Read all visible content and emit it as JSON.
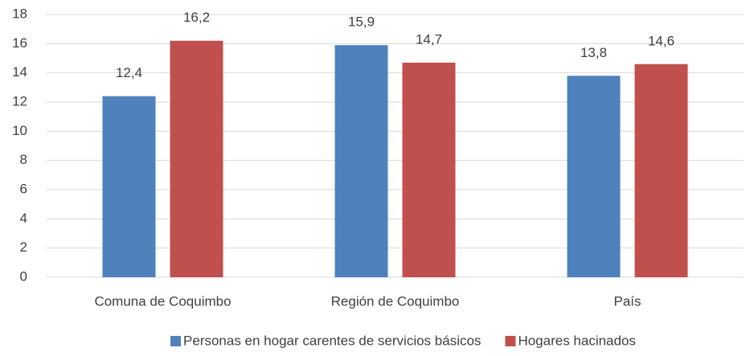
{
  "chart_data": {
    "type": "bar",
    "categories": [
      "Comuna de Coquimbo",
      "Región de Coquimbo",
      "País"
    ],
    "series": [
      {
        "name": "Personas en hogar carentes de servicios básicos",
        "color": "#4f81bd",
        "values": [
          12.4,
          15.9,
          13.8
        ],
        "value_labels": [
          "12,4",
          "15,9",
          "13,8"
        ]
      },
      {
        "name": "Hogares hacinados",
        "color": "#c0504d",
        "values": [
          16.2,
          14.7,
          14.6
        ],
        "value_labels": [
          "16,2",
          "14,7",
          "14,6"
        ]
      }
    ],
    "ylim": [
      0,
      18
    ],
    "yticks": [
      0,
      2,
      4,
      6,
      8,
      10,
      12,
      14,
      16,
      18
    ],
    "grid": true,
    "legend": "bottom"
  }
}
